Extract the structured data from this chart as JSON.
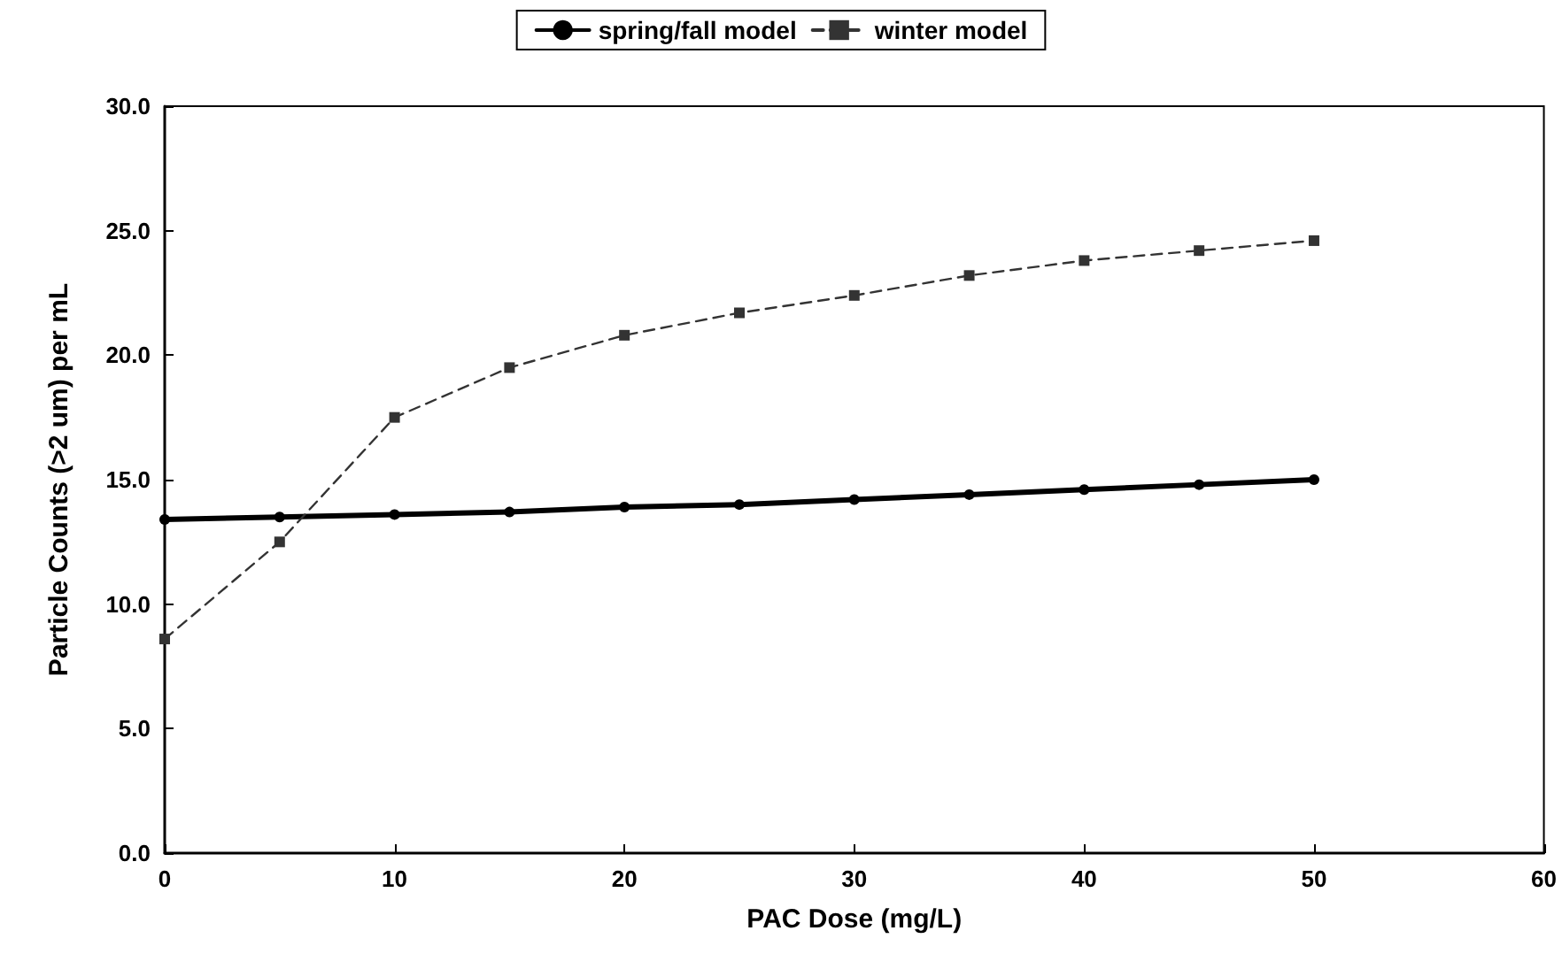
{
  "chart_data": {
    "type": "line",
    "xlabel": "PAC Dose (mg/L)",
    "ylabel": "Particle Counts (>2 um) per mL",
    "x": [
      0,
      5,
      10,
      15,
      20,
      25,
      30,
      35,
      40,
      45,
      50
    ],
    "series": [
      {
        "name": "spring/fall model",
        "color": "#000000",
        "marker": "circle",
        "line_style": "solid",
        "values": [
          13.4,
          13.5,
          13.6,
          13.7,
          13.9,
          14.0,
          14.2,
          14.4,
          14.6,
          14.8,
          15.0
        ]
      },
      {
        "name": "winter model",
        "color": "#333333",
        "marker": "square",
        "line_style": "dashed",
        "values": [
          8.6,
          12.5,
          17.5,
          19.5,
          20.8,
          21.7,
          22.4,
          23.2,
          23.8,
          24.2,
          24.6
        ]
      }
    ],
    "xlim": [
      0,
      60
    ],
    "xticks": [
      0,
      10,
      20,
      30,
      40,
      50,
      60
    ],
    "ylim": [
      0,
      30
    ],
    "yticks": [
      {
        "value": 0,
        "label": "0.0"
      },
      {
        "value": 5,
        "label": "5.0"
      },
      {
        "value": 10,
        "label": "10.0"
      },
      {
        "value": 15,
        "label": "15.0"
      },
      {
        "value": 20,
        "label": "20.0"
      },
      {
        "value": 25,
        "label": "25.0"
      },
      {
        "value": 30,
        "label": "30.0"
      }
    ],
    "grid": false,
    "legend": "top"
  }
}
